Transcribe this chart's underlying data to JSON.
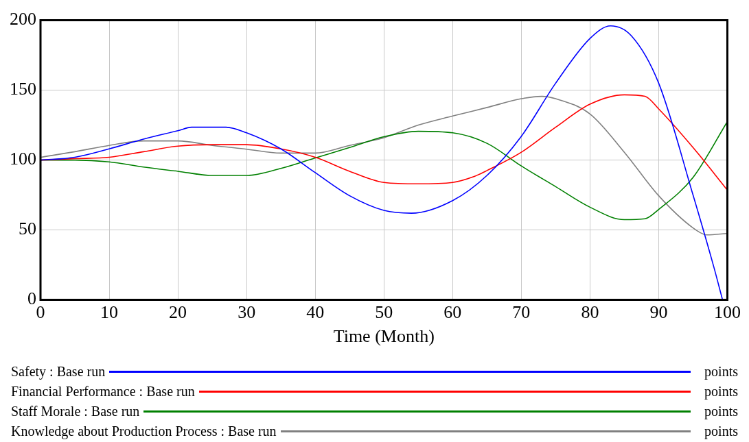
{
  "chart_data": {
    "type": "line",
    "xlabel": "Time (Month)",
    "xlim": [
      0,
      100
    ],
    "xticks": [
      0,
      10,
      20,
      30,
      40,
      50,
      60,
      70,
      80,
      90,
      100
    ],
    "ylim": [
      0,
      200
    ],
    "yticks": [
      0,
      50,
      100,
      150,
      200
    ],
    "grid": true,
    "legend": "bottom",
    "annotations": [
      "points",
      "points",
      "points",
      "points"
    ],
    "series": [
      {
        "name": "Safety : Base run",
        "color": "#0000ff",
        "x": [
          0,
          5,
          10,
          15,
          20,
          22,
          27,
          30,
          35,
          40,
          45,
          50,
          54,
          60,
          65,
          70,
          75,
          80,
          83,
          86,
          90,
          95,
          98,
          99.3
        ],
        "values": [
          100,
          102,
          108,
          115,
          121,
          123.5,
          123.5,
          119.5,
          108,
          91,
          74.5,
          64,
          62,
          71,
          89,
          117,
          155,
          187,
          196,
          189,
          155,
          75,
          24,
          0
        ]
      },
      {
        "name": "Financial Performance : Base run",
        "color": "#ff0000",
        "x": [
          0,
          5,
          10,
          15,
          20,
          25,
          30,
          35,
          40,
          45,
          50,
          55,
          60,
          63,
          65,
          70,
          75,
          80,
          85,
          88,
          90,
          95,
          100
        ],
        "values": [
          100,
          101,
          102,
          106,
          110,
          111,
          111,
          108,
          102,
          92,
          84,
          83,
          84,
          88,
          92.5,
          105.6,
          123.5,
          140,
          146.7,
          145.6,
          136.6,
          109,
          78.5
        ]
      },
      {
        "name": "Staff Morale : Base run",
        "color": "#008000",
        "x": [
          0,
          5,
          10,
          15,
          20,
          25,
          30,
          35,
          40,
          45,
          50,
          55,
          60,
          65,
          70,
          75,
          80,
          85,
          88,
          90,
          95,
          100
        ],
        "values": [
          100,
          100,
          98.7,
          95,
          92,
          89,
          89,
          94,
          101.5,
          109,
          116.7,
          120.6,
          119.5,
          112,
          95.8,
          81,
          66.3,
          57.4,
          58,
          64.7,
          87.6,
          127.5
        ]
      },
      {
        "name": "Knowledge about Production Process : Base run",
        "color": "#808080",
        "x": [
          0,
          5,
          10,
          15,
          20,
          25,
          30,
          35,
          40,
          45,
          50,
          55,
          60,
          65,
          70,
          73,
          75,
          80,
          85,
          90,
          95,
          97,
          100
        ],
        "values": [
          102,
          106,
          110.5,
          113.7,
          113.7,
          110.5,
          107.8,
          105,
          105,
          110.5,
          116,
          125,
          131.5,
          137.6,
          143.9,
          145.6,
          143.9,
          133,
          105.6,
          74.5,
          51.5,
          46.5,
          47.5
        ]
      }
    ]
  }
}
